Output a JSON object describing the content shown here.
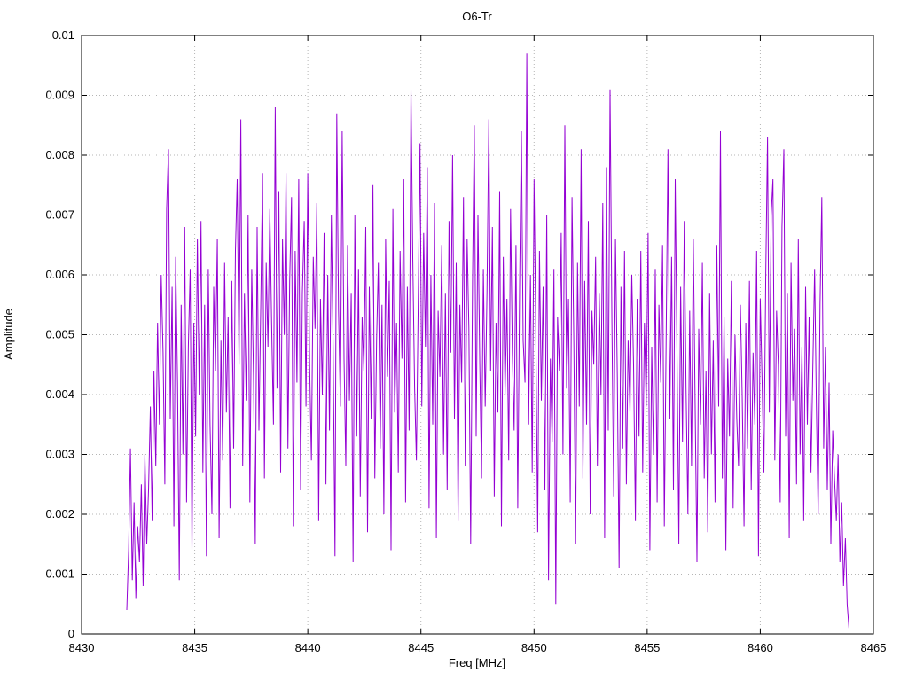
{
  "chart": {
    "title": "O6-Tr",
    "xlabel": "Freq [MHz]",
    "ylabel": "Amplitude"
  },
  "chart_data": {
    "type": "line",
    "title": "O6-Tr",
    "xlabel": "Freq [MHz]",
    "ylabel": "Amplitude",
    "xlim": [
      8430,
      8465
    ],
    "ylim": [
      0,
      0.01
    ],
    "x_ticks": [
      8430,
      8435,
      8440,
      8445,
      8450,
      8455,
      8460,
      8465
    ],
    "y_ticks": [
      0,
      0.001,
      0.002,
      0.003,
      0.004,
      0.005,
      0.006,
      0.007,
      0.008,
      0.009,
      0.01
    ],
    "grid": true,
    "legend": "none",
    "line_color": "#9400d3",
    "series": [
      {
        "name": "O6-Tr",
        "x_start": 8432.0,
        "x_step": 0.08,
        "amp_scale": 0.0001,
        "values": [
          4,
          14,
          31,
          9,
          22,
          6,
          18,
          12,
          25,
          8,
          30,
          15,
          24,
          38,
          19,
          44,
          28,
          52,
          35,
          60,
          47,
          25,
          71,
          81,
          36,
          58,
          18,
          63,
          42,
          9,
          55,
          30,
          68,
          22,
          48,
          61,
          14,
          52,
          33,
          66,
          40,
          69,
          27,
          55,
          13,
          61,
          35,
          20,
          58,
          44,
          66,
          16,
          49,
          29,
          62,
          37,
          53,
          21,
          59,
          31,
          64,
          76,
          45,
          86,
          28,
          57,
          39,
          70,
          22,
          61,
          43,
          15,
          68,
          34,
          55,
          77,
          26,
          62,
          48,
          71,
          52,
          35,
          88,
          41,
          74,
          27,
          66,
          50,
          77,
          31,
          59,
          73,
          18,
          64,
          42,
          76,
          24,
          57,
          69,
          38,
          77,
          45,
          29,
          63,
          51,
          72,
          19,
          56,
          40,
          67,
          25,
          60,
          34,
          70,
          48,
          13,
          87,
          54,
          38,
          84,
          46,
          28,
          65,
          39,
          57,
          12,
          70,
          33,
          61,
          23,
          53,
          44,
          68,
          17,
          58,
          36,
          75,
          26,
          49,
          62,
          31,
          55,
          20,
          66,
          43,
          59,
          14,
          71,
          37,
          52,
          27,
          64,
          46,
          76,
          22,
          58,
          34,
          91,
          63,
          41,
          29,
          56,
          82,
          38,
          67,
          48,
          78,
          21,
          60,
          35,
          72,
          16,
          54,
          43,
          65,
          30,
          57,
          24,
          69,
          47,
          80,
          36,
          62,
          19,
          55,
          42,
          73,
          28,
          66,
          51,
          15,
          59,
          85,
          33,
          70,
          45,
          26,
          61,
          38,
          57,
          86,
          44,
          68,
          23,
          52,
          37,
          74,
          18,
          63,
          40,
          56,
          29,
          71,
          47,
          34,
          65,
          21,
          58,
          84,
          49,
          42,
          97,
          35,
          60,
          27,
          76,
          50,
          17,
          64,
          39,
          58,
          24,
          70,
          9,
          46,
          32,
          61,
          5,
          53,
          44,
          67,
          30,
          85,
          41,
          56,
          22,
          73,
          48,
          15,
          62,
          38,
          81,
          26,
          59,
          35,
          69,
          20,
          54,
          45,
          63,
          28,
          57,
          40,
          72,
          16,
          78,
          34,
          91,
          52,
          23,
          66,
          43,
          11,
          58,
          31,
          64,
          25,
          49,
          37,
          60,
          45,
          19,
          56,
          33,
          64,
          27,
          52,
          38,
          67,
          14,
          48,
          30,
          61,
          22,
          55,
          42,
          65,
          18,
          50,
          81,
          36,
          63,
          24,
          76,
          47,
          15,
          58,
          32,
          69,
          41,
          20,
          54,
          28,
          66,
          39,
          12,
          51,
          35,
          62,
          26,
          44,
          17,
          57,
          30,
          49,
          22,
          65,
          38,
          84,
          26,
          53,
          14,
          46,
          33,
          59,
          21,
          50,
          36,
          28,
          55,
          40,
          18,
          52,
          31,
          59,
          24,
          47,
          35,
          64,
          13,
          56,
          42,
          27,
          60,
          83,
          37,
          70,
          76,
          29,
          54,
          45,
          22,
          68,
          81,
          33,
          57,
          16,
          62,
          39,
          51,
          25,
          66,
          30,
          48,
          19,
          58,
          35,
          53,
          27,
          44,
          61,
          38,
          20,
          55,
          73,
          31,
          48,
          24,
          42,
          15,
          34,
          26,
          19,
          30,
          12,
          22,
          8,
          16,
          5,
          1
        ]
      }
    ]
  }
}
